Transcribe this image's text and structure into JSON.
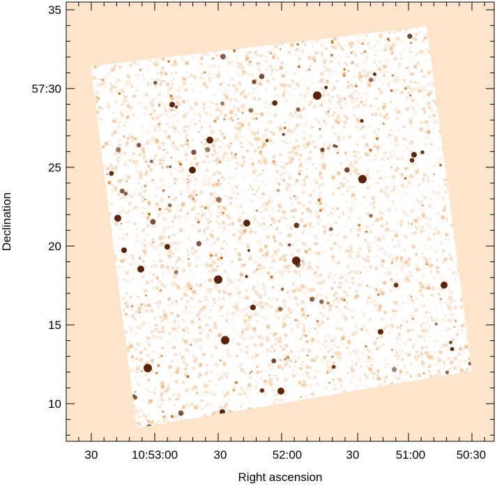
{
  "figure": {
    "xlabel": "Right ascension",
    "ylabel": "Declination",
    "x_tick_labels": [
      "30",
      "10:53:00",
      "30",
      "52:00",
      "30",
      "51:00",
      "50:30"
    ],
    "y_tick_labels": [
      "35",
      "57:30",
      "25",
      "20",
      "15",
      "10"
    ],
    "colors": {
      "background": "#fde5cc",
      "map_base": "#ffffff",
      "source_dark": "#5a2200",
      "source_mid": "#c26b1a",
      "noise": "#f2a55e"
    }
  }
}
